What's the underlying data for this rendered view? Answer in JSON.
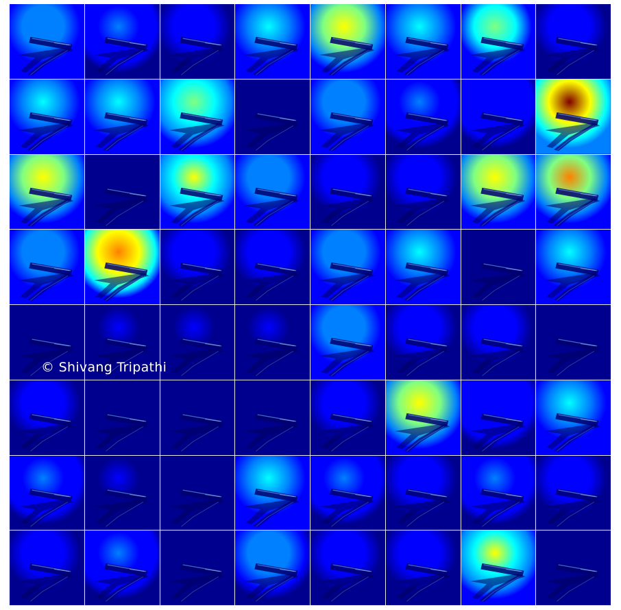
{
  "watermark": "© Shivang Tripathi",
  "colormap": [
    "#00008f",
    "#0000ff",
    "#0080ff",
    "#00ffff",
    "#80ff80",
    "#ffff00",
    "#ff8000",
    "#ff0000",
    "#800000"
  ],
  "grid": {
    "rows": 8,
    "cols": 8,
    "activation_levels": [
      [
        0.3,
        0.22,
        0.1,
        0.35,
        0.62,
        0.35,
        0.45,
        0.12
      ],
      [
        0.4,
        0.42,
        0.48,
        0.04,
        0.3,
        0.22,
        0.16,
        0.95
      ],
      [
        0.62,
        0.06,
        0.6,
        0.3,
        0.12,
        0.1,
        0.62,
        0.78
      ],
      [
        0.3,
        0.8,
        0.1,
        0.12,
        0.3,
        0.4,
        0.03,
        0.35
      ],
      [
        0.06,
        0.08,
        0.08,
        0.08,
        0.3,
        0.12,
        0.1,
        0.06
      ],
      [
        0.12,
        0.06,
        0.03,
        0.06,
        0.12,
        0.62,
        0.16,
        0.42
      ],
      [
        0.25,
        0.08,
        0.05,
        0.32,
        0.22,
        0.14,
        0.25,
        0.1
      ],
      [
        0.1,
        0.22,
        0.06,
        0.28,
        0.1,
        0.1,
        0.6,
        0.06
      ]
    ]
  }
}
